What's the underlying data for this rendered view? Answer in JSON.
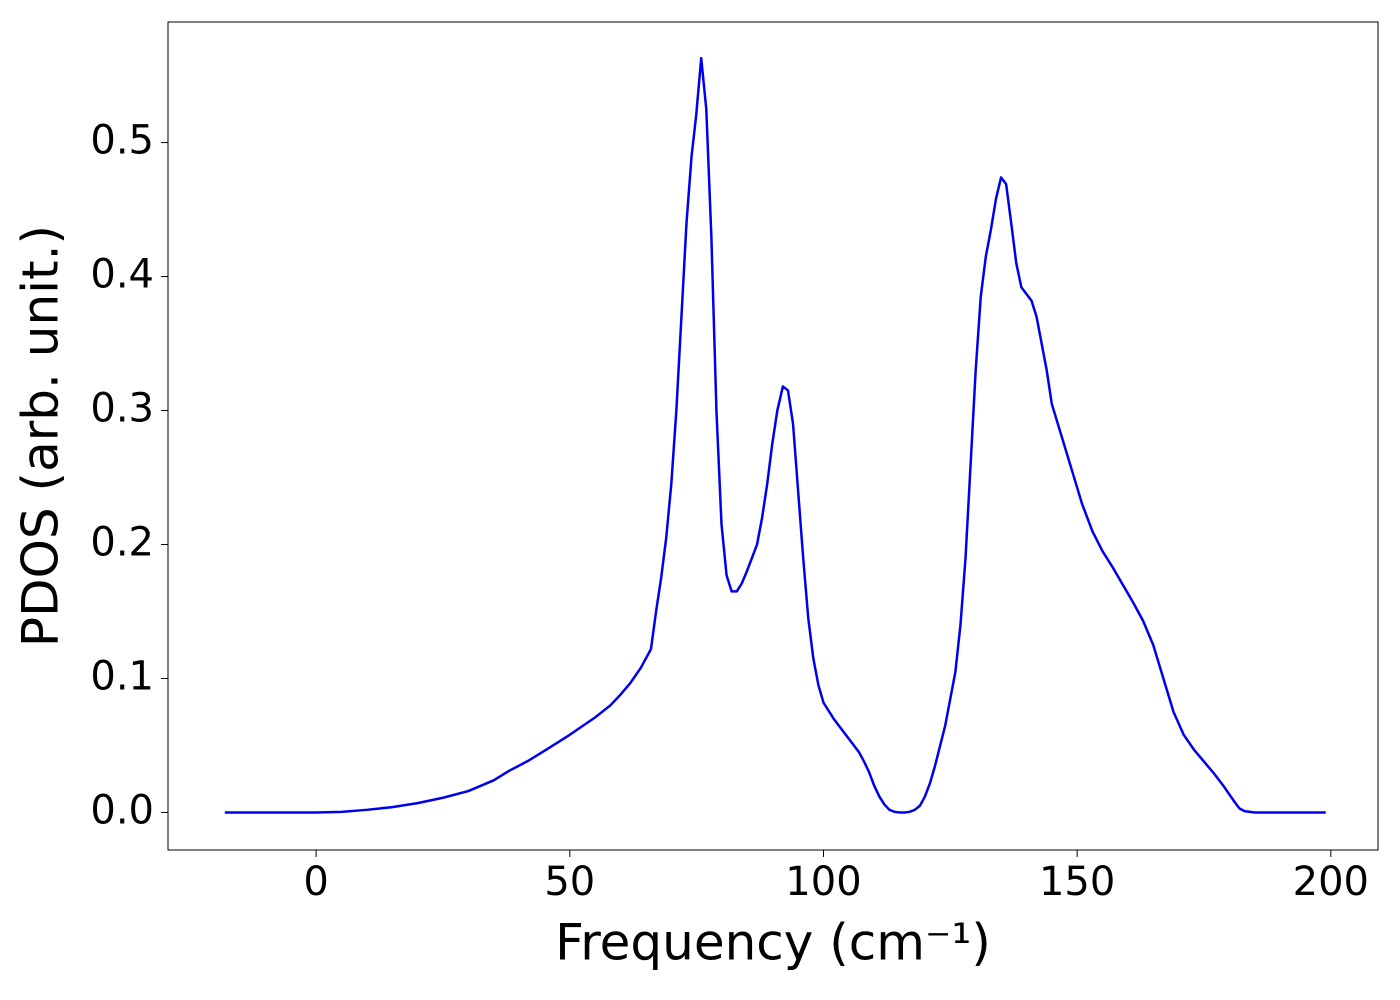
{
  "chart_data": {
    "type": "line",
    "xlabel": "Frequency (cm⁻¹)",
    "ylabel": "PDOS (arb. unit.)",
    "color": "#0000ee",
    "x": [
      -18,
      0,
      5,
      10,
      15,
      20,
      25,
      30,
      35,
      38,
      40,
      42,
      45,
      50,
      55,
      58,
      60,
      62,
      64,
      66,
      67,
      68,
      69,
      70,
      71,
      72,
      73,
      74,
      74.9,
      75.9,
      76.9,
      77.9,
      78.9,
      79.9,
      80.9,
      81.9,
      82.9,
      83.9,
      84.9,
      85.9,
      86.9,
      87.9,
      88.9,
      89.9,
      90.9,
      92,
      93,
      94,
      95,
      96,
      97,
      98,
      99,
      100,
      102,
      104,
      106,
      107,
      108,
      109,
      110,
      111,
      112,
      113,
      114,
      115,
      116,
      117,
      118,
      119,
      120,
      121,
      122,
      123,
      124,
      125,
      126,
      127,
      128,
      129,
      130,
      131,
      132,
      133,
      134,
      135,
      136,
      137,
      138,
      139,
      140,
      141,
      142,
      143,
      144,
      145,
      147,
      149,
      151,
      153,
      155,
      157,
      159,
      161,
      163,
      165,
      167,
      169,
      171,
      173,
      175,
      177,
      179,
      181,
      182,
      183,
      185,
      190,
      199
    ],
    "values": [
      0,
      0,
      0.0005,
      0.002,
      0.004,
      0.007,
      0.011,
      0.016,
      0.024,
      0.031,
      0.035,
      0.039,
      0.046,
      0.058,
      0.071,
      0.08,
      0.088,
      0.097,
      0.108,
      0.122,
      0.15,
      0.175,
      0.205,
      0.245,
      0.3,
      0.37,
      0.44,
      0.49,
      0.52,
      0.563,
      0.525,
      0.43,
      0.3,
      0.215,
      0.177,
      0.165,
      0.165,
      0.171,
      0.18,
      0.19,
      0.2,
      0.22,
      0.245,
      0.275,
      0.3,
      0.318,
      0.315,
      0.29,
      0.24,
      0.19,
      0.145,
      0.115,
      0.095,
      0.082,
      0.07,
      0.06,
      0.05,
      0.045,
      0.038,
      0.03,
      0.02,
      0.012,
      0.006,
      0.002,
      0.0005,
      0,
      0,
      0.0005,
      0.002,
      0.005,
      0.012,
      0.022,
      0.035,
      0.05,
      0.065,
      0.085,
      0.105,
      0.14,
      0.19,
      0.26,
      0.33,
      0.385,
      0.415,
      0.435,
      0.458,
      0.474,
      0.469,
      0.44,
      0.41,
      0.392,
      0.387,
      0.382,
      0.37,
      0.35,
      0.33,
      0.305,
      0.28,
      0.255,
      0.23,
      0.21,
      0.195,
      0.183,
      0.17,
      0.157,
      0.143,
      0.125,
      0.1,
      0.075,
      0.058,
      0.047,
      0.038,
      0.029,
      0.019,
      0.008,
      0.003,
      0.001,
      0,
      0,
      0
    ],
    "xlim": [
      -29.2,
      209.3
    ],
    "ylim": [
      -0.028,
      0.59
    ],
    "xticks": [
      0,
      50,
      100,
      150,
      200
    ],
    "yticks": [
      {
        "value": 0,
        "label": "0.0"
      },
      0.1,
      0.2,
      0.3,
      0.4,
      0.5
    ]
  }
}
